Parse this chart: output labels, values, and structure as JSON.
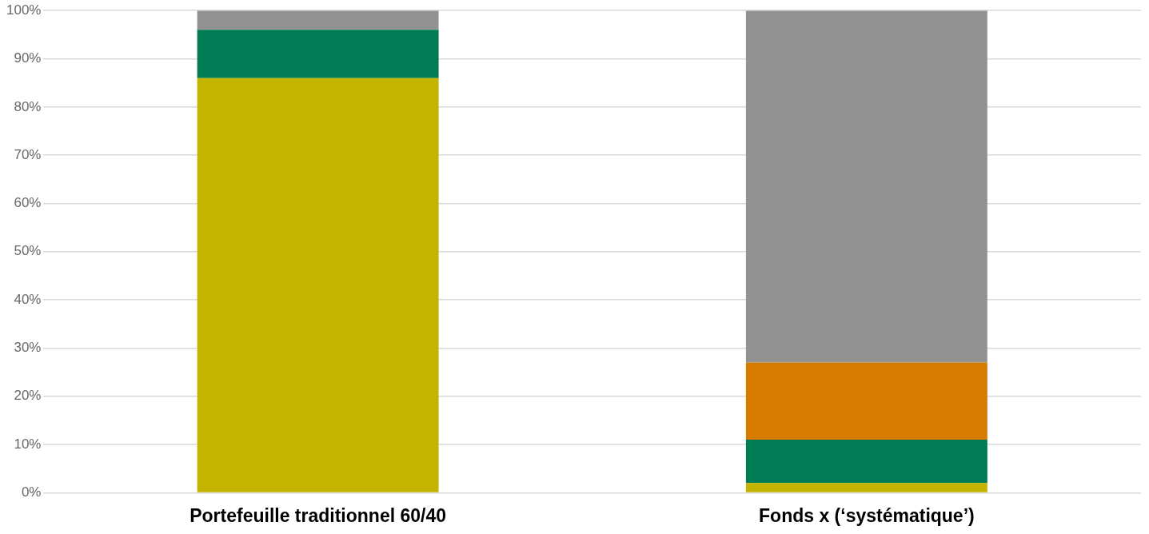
{
  "chart_data": {
    "type": "bar",
    "stacked": true,
    "categories": [
      "Portefeuille traditionnel 60/40",
      "Fonds x (‘systématique’)"
    ],
    "series": [
      {
        "color": "#c4b400",
        "values": [
          86,
          2
        ]
      },
      {
        "color": "#007c55",
        "values": [
          10,
          9
        ]
      },
      {
        "color": "#d67a00",
        "values": [
          0,
          16
        ]
      },
      {
        "color": "#929292",
        "values": [
          4,
          73
        ]
      }
    ],
    "ylim": [
      0,
      100
    ],
    "yticks": [
      {
        "value": 0,
        "label": "0%"
      },
      {
        "value": 10,
        "label": "10%"
      },
      {
        "value": 20,
        "label": "20%"
      },
      {
        "value": 30,
        "label": "30%"
      },
      {
        "value": 40,
        "label": "40%"
      },
      {
        "value": 50,
        "label": "50%"
      },
      {
        "value": 60,
        "label": "60%"
      },
      {
        "value": 70,
        "label": "70%"
      },
      {
        "value": 80,
        "label": "80%"
      },
      {
        "value": 90,
        "label": "90%"
      },
      {
        "value": 100,
        "label": "100%"
      }
    ],
    "grid": "y",
    "legend": false
  }
}
